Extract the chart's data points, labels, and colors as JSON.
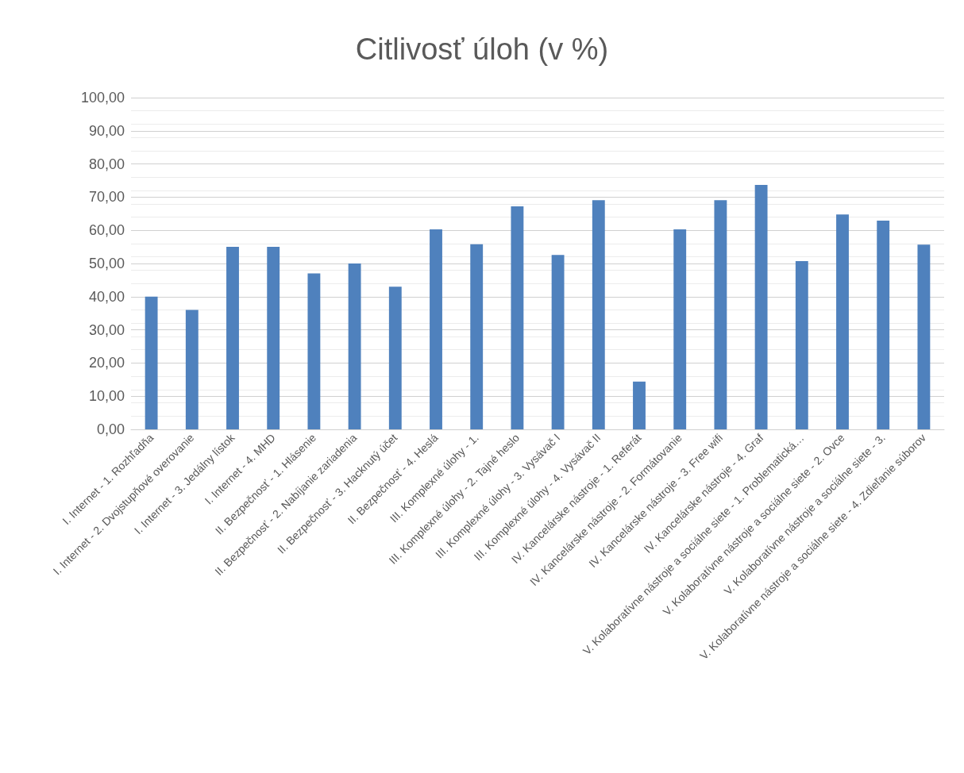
{
  "chart_data": {
    "type": "bar",
    "title": "Citlivosť úloh (v %)",
    "categories": [
      "I. Internet - 1. Rozhľadňa",
      "I. Internet - 2. Dvojstupňové overovanie",
      "I. Internet - 3. Jedálny lístok",
      "I. Internet - 4. MHD",
      "II. Bezpečnosť - 1. Hlásenie",
      "II. Bezpečnosť - 2. Nabíjanie zariadenia",
      "II. Bezpečnosť - 3. Hacknutý účet",
      "II. Bezpečnosť - 4. Heslá",
      "III. Komplexné úlohy - 1.",
      "III. Komplexné úlohy - 2. Tajné heslo",
      "III. Komplexné úlohy - 3. Vysávač I",
      "III. Komplexné úlohy - 4. Vysávač II",
      "IV. Kancelárske nástroje - 1. Referát",
      "IV. Kancelárske nástroje - 2. Formátovanie",
      "IV. Kancelárske nástroje - 3. Free wifi",
      "IV. Kancelárske nástroje - 4. Graf",
      "V. Kolaboratívne nástroje a sociálne siete - 1. Problematická…",
      "V. Kolaboratívne nástroje a sociálne siete - 2. Ovce",
      "V. Kolaboratívne nástroje a sociálne siete - 3.",
      "V. Kolaboratívne nástroje a sociálne siete - 4. Zdieľanie súborov"
    ],
    "values": [
      40,
      36,
      55,
      55,
      47,
      50,
      43,
      60.3,
      55.8,
      67.2,
      52.6,
      69.1,
      14.4,
      60.3,
      69.1,
      73.7,
      50.7,
      64.8,
      62.9,
      55.7
    ],
    "color": "#4f81bd",
    "ylim": [
      0,
      100
    ],
    "yticks": [
      {
        "value": 0,
        "label": "0,00"
      },
      {
        "value": 10,
        "label": "10,00"
      },
      {
        "value": 20,
        "label": "20,00"
      },
      {
        "value": 30,
        "label": "30,00"
      },
      {
        "value": 40,
        "label": "40,00"
      },
      {
        "value": 50,
        "label": "50,00"
      },
      {
        "value": 60,
        "label": "60,00"
      },
      {
        "value": 70,
        "label": "70,00"
      },
      {
        "value": 80,
        "label": "80,00"
      },
      {
        "value": 90,
        "label": "90,00"
      },
      {
        "value": 100,
        "label": "100,00"
      }
    ],
    "grid": true
  }
}
